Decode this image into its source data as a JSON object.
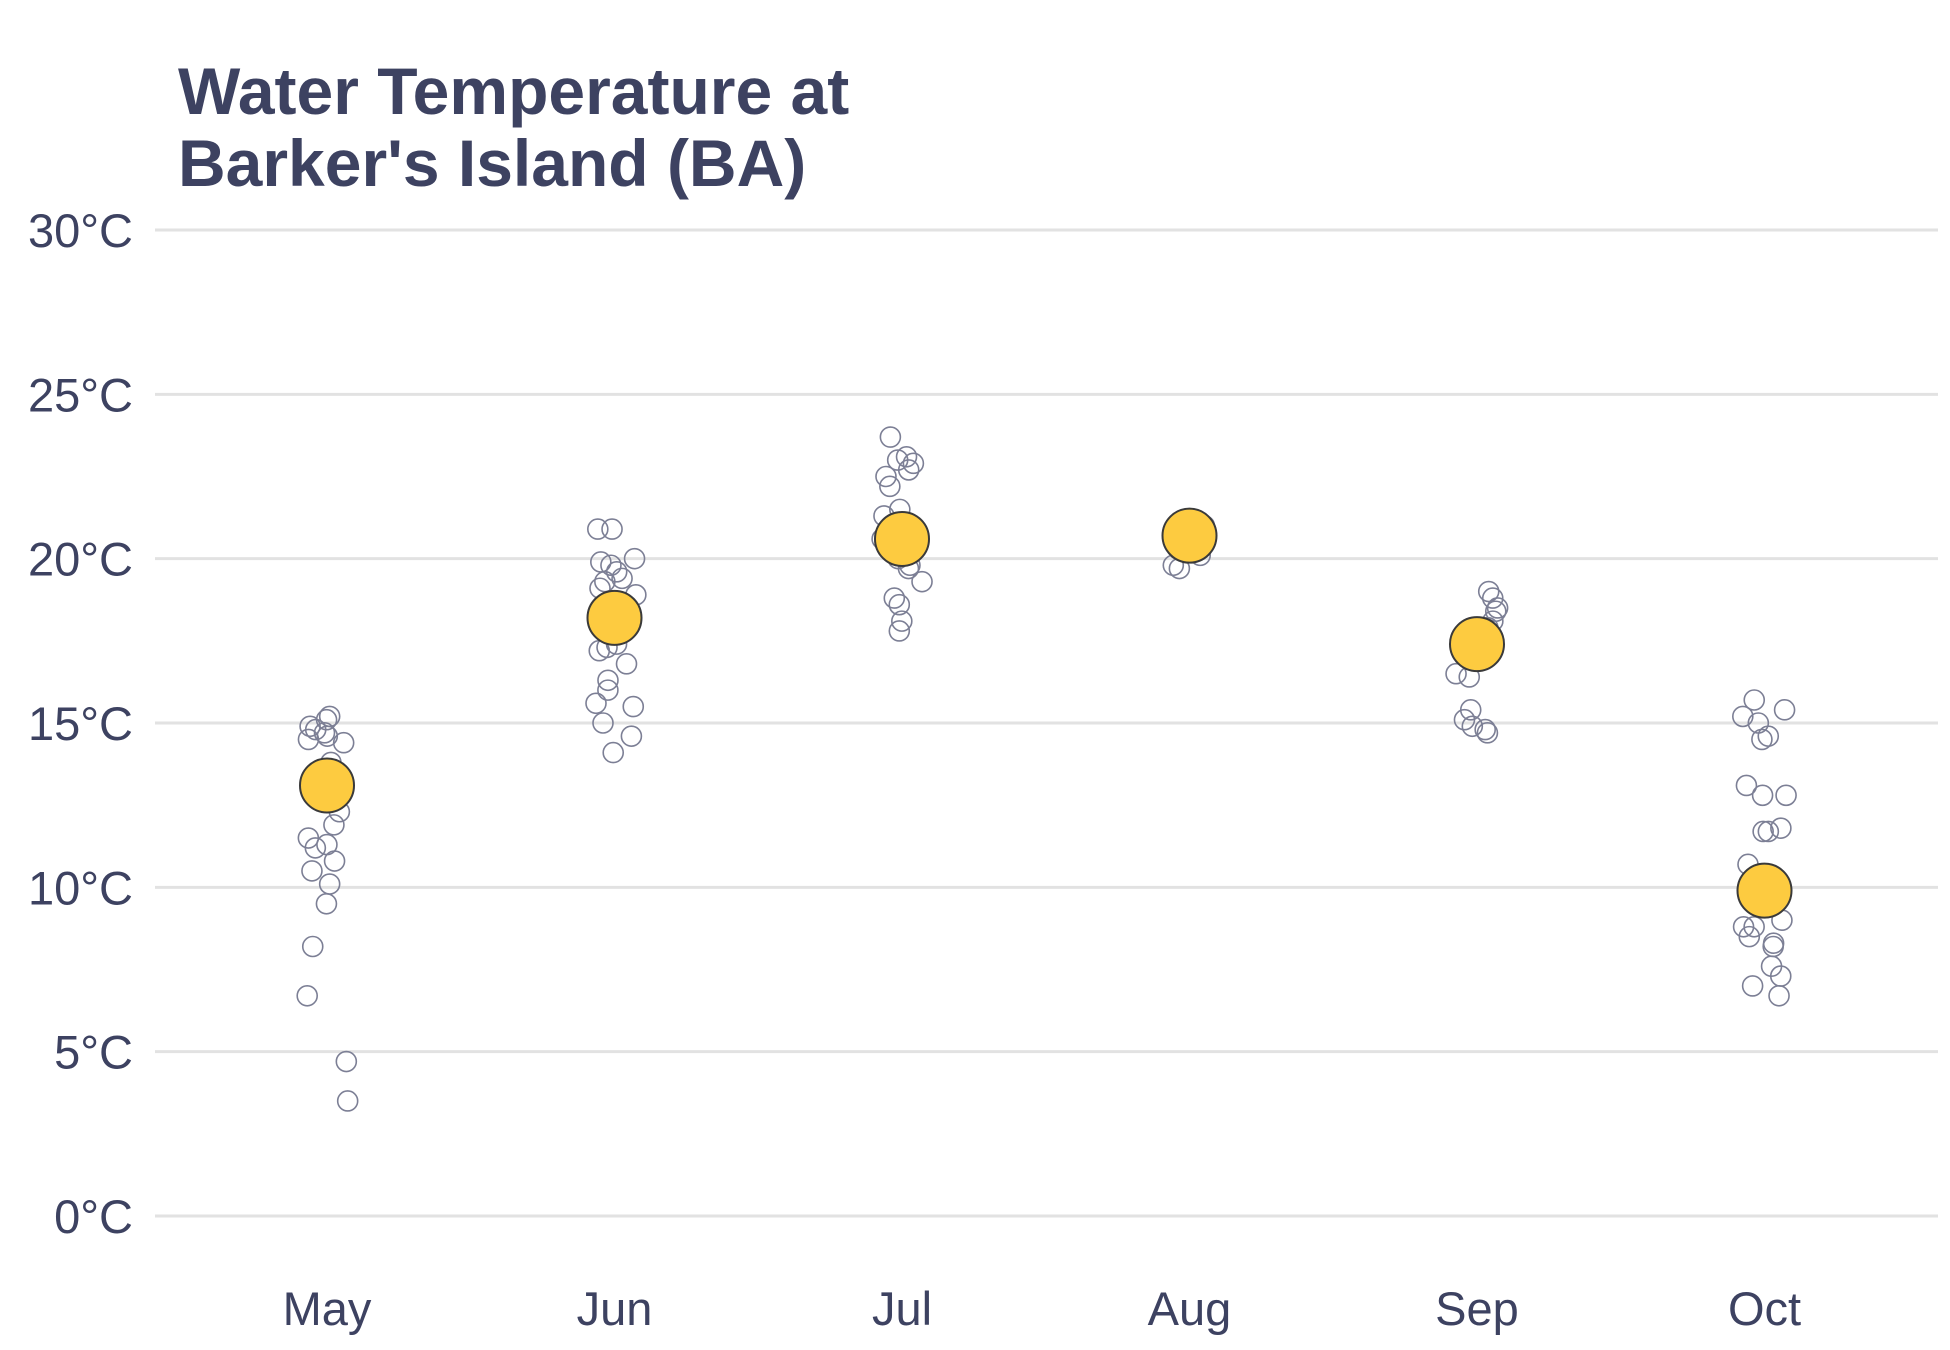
{
  "chart_data": {
    "type": "scatter",
    "title_lines": [
      "Water Temperature at",
      "Barker's Island (BA)"
    ],
    "xlabel": "",
    "ylabel": "",
    "categories": [
      "May",
      "Jun",
      "Jul",
      "Aug",
      "Sep",
      "Oct"
    ],
    "y_ticks": [
      0,
      5,
      10,
      15,
      20,
      25,
      30
    ],
    "y_tick_labels": [
      "0°C",
      "5°C",
      "10°C",
      "15°C",
      "20°C",
      "25°C",
      "30°C"
    ],
    "ylim": [
      0,
      30
    ],
    "grid": "horizontal",
    "legend": "none",
    "colors": {
      "title": "#3d4261",
      "tick_text": "#3d4261",
      "grid": "#e2e2e2",
      "observation_stroke": "#7c7f95",
      "mean_fill": "#fdcb40",
      "mean_stroke": "#3a3a3a"
    },
    "means": [
      13.1,
      18.2,
      20.6,
      20.7,
      17.4,
      9.9
    ],
    "observations": [
      [
        15.1,
        15.2,
        14.9,
        14.8,
        14.7,
        14.6,
        14.5,
        14.4,
        13.8,
        13.5,
        13.1,
        12.3,
        11.9,
        11.5,
        11.3,
        11.2,
        10.8,
        10.5,
        10.1,
        9.5,
        8.2,
        6.7,
        4.7,
        3.5
      ],
      [
        20.9,
        20.9,
        20.0,
        19.9,
        19.8,
        19.6,
        19.4,
        19.3,
        19.1,
        18.9,
        18.7,
        18.5,
        17.4,
        17.3,
        17.2,
        16.8,
        16.3,
        16.0,
        15.6,
        15.5,
        15.0,
        14.6,
        14.1
      ],
      [
        23.7,
        23.1,
        23.0,
        22.9,
        22.7,
        22.5,
        22.2,
        21.5,
        21.3,
        20.6,
        20.0,
        19.8,
        19.7,
        19.3,
        18.8,
        18.6,
        18.1,
        17.8
      ],
      [
        21.0,
        20.9,
        20.8,
        20.5,
        20.3,
        20.1,
        19.8,
        19.7
      ],
      [
        19.0,
        18.8,
        18.5,
        18.4,
        18.1,
        17.9,
        17.4,
        17.1,
        16.5,
        16.4,
        15.4,
        15.1,
        14.9,
        14.8,
        14.7
      ],
      [
        15.7,
        15.4,
        15.2,
        15.0,
        14.6,
        14.5,
        13.1,
        12.8,
        12.8,
        11.8,
        11.7,
        11.7,
        10.7,
        9.7,
        9.0,
        8.8,
        8.8,
        8.5,
        8.3,
        8.2,
        7.6,
        7.3,
        7.0,
        6.7
      ]
    ]
  }
}
